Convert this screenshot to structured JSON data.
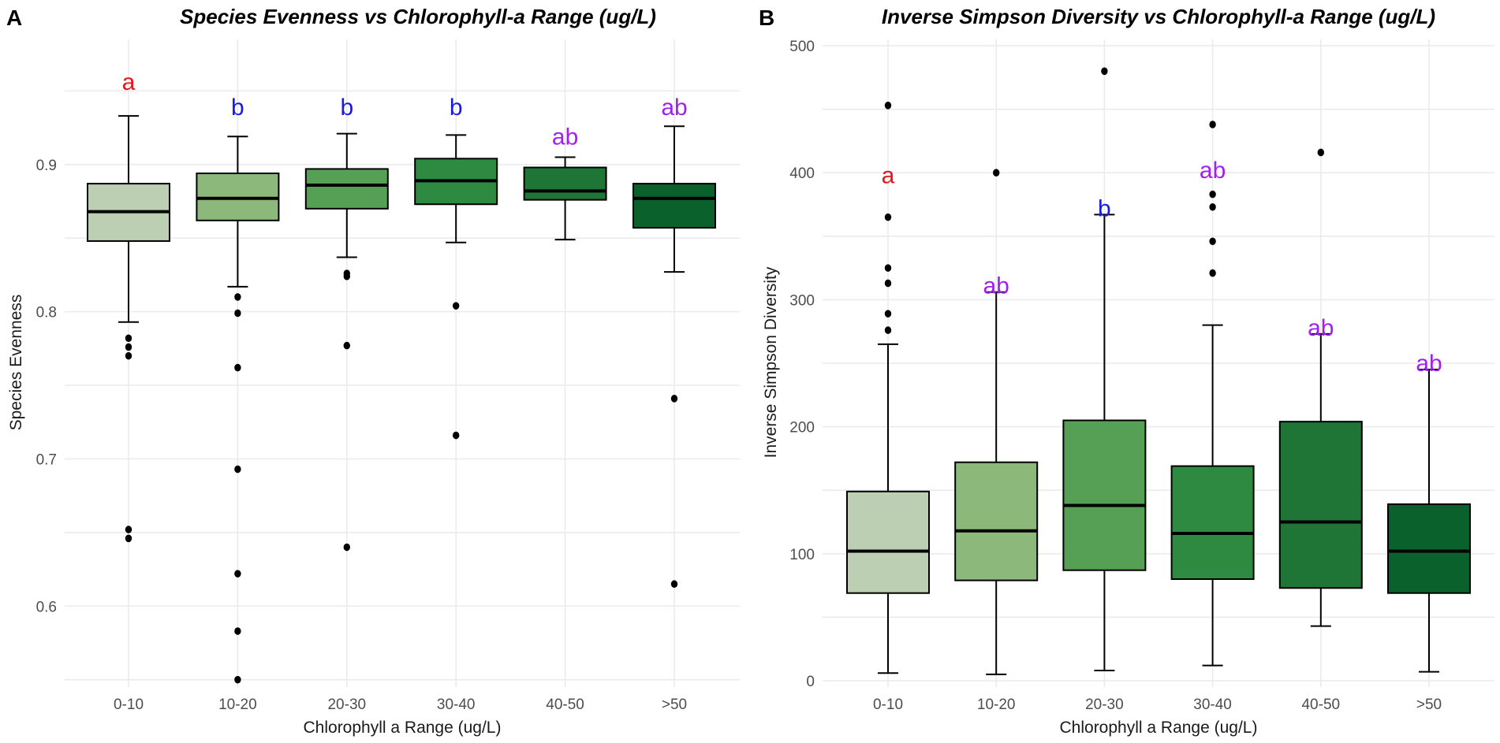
{
  "chart_data": [
    {
      "type": "box",
      "panel": "A",
      "title": "Species Evenness vs Chlorophyll-a Range (ug/L)",
      "xlabel": "Chlorophyll a Range (ug/L)",
      "ylabel": "Species Evenness",
      "ylim": [
        0.545,
        0.985
      ],
      "yticks": [
        0.6,
        0.7,
        0.8,
        0.9
      ],
      "ytick_labels": [
        "0.6",
        "0.7",
        "0.8",
        "0.9"
      ],
      "grid": true,
      "categories": [
        "0-10",
        "10-20",
        "20-30",
        "30-40",
        "40-50",
        ">50"
      ],
      "fill_colors": [
        "#bccfb3",
        "#8db87b",
        "#56a055",
        "#2e8a40",
        "#1f7535",
        "#0b612b"
      ],
      "boxes": [
        {
          "lower_whisker": 0.793,
          "q1": 0.848,
          "median": 0.868,
          "q3": 0.887,
          "upper_whisker": 0.933,
          "outliers": [
            0.782,
            0.776,
            0.77,
            0.652,
            0.646
          ]
        },
        {
          "lower_whisker": 0.817,
          "q1": 0.862,
          "median": 0.877,
          "q3": 0.894,
          "upper_whisker": 0.919,
          "outliers": [
            0.81,
            0.799,
            0.762,
            0.693,
            0.622,
            0.583,
            0.55
          ]
        },
        {
          "lower_whisker": 0.837,
          "q1": 0.87,
          "median": 0.886,
          "q3": 0.897,
          "upper_whisker": 0.921,
          "outliers": [
            0.826,
            0.824,
            0.777,
            0.64
          ]
        },
        {
          "lower_whisker": 0.847,
          "q1": 0.873,
          "median": 0.889,
          "q3": 0.904,
          "upper_whisker": 0.92,
          "outliers": [
            0.804,
            0.716
          ]
        },
        {
          "lower_whisker": 0.849,
          "q1": 0.876,
          "median": 0.882,
          "q3": 0.898,
          "upper_whisker": 0.905,
          "outliers": []
        },
        {
          "lower_whisker": 0.827,
          "q1": 0.857,
          "median": 0.877,
          "q3": 0.887,
          "upper_whisker": 0.926,
          "outliers": [
            0.741,
            0.615
          ]
        }
      ],
      "annotations": [
        {
          "text": "a",
          "value": 0.956,
          "color": "#e8141c"
        },
        {
          "text": "b",
          "value": 0.939,
          "color": "#1a1ae0"
        },
        {
          "text": "b",
          "value": 0.939,
          "color": "#1a1ae0"
        },
        {
          "text": "b",
          "value": 0.939,
          "color": "#1a1ae0"
        },
        {
          "text": "ab",
          "value": 0.919,
          "color": "#a020f0"
        },
        {
          "text": "ab",
          "value": 0.939,
          "color": "#a020f0"
        }
      ]
    },
    {
      "type": "box",
      "panel": "B",
      "title": "Inverse Simpson Diversity vs Chlorophyll-a Range (ug/L)",
      "xlabel": "Chlorophyll a Range (ug/L)",
      "ylabel": "Inverse Simpson Diversity",
      "ylim": [
        -5,
        505
      ],
      "yticks": [
        0,
        100,
        200,
        300,
        400,
        500
      ],
      "ytick_labels": [
        "0",
        "100",
        "200",
        "300",
        "400",
        "500"
      ],
      "grid": true,
      "categories": [
        "0-10",
        "10-20",
        "20-30",
        "30-40",
        "40-50",
        ">50"
      ],
      "fill_colors": [
        "#bccfb3",
        "#8db87b",
        "#56a055",
        "#2e8a40",
        "#1f7535",
        "#0b612b"
      ],
      "boxes": [
        {
          "lower_whisker": 6,
          "q1": 69,
          "median": 102,
          "q3": 149,
          "upper_whisker": 265,
          "outliers": [
            453,
            365,
            325,
            313,
            289,
            276
          ]
        },
        {
          "lower_whisker": 5,
          "q1": 79,
          "median": 118,
          "q3": 172,
          "upper_whisker": 306,
          "outliers": [
            400
          ]
        },
        {
          "lower_whisker": 8,
          "q1": 87,
          "median": 138,
          "q3": 205,
          "upper_whisker": 367,
          "outliers": [
            480
          ]
        },
        {
          "lower_whisker": 12,
          "q1": 80,
          "median": 116,
          "q3": 169,
          "upper_whisker": 280,
          "outliers": [
            438,
            383,
            373,
            346,
            321
          ]
        },
        {
          "lower_whisker": 43,
          "q1": 73,
          "median": 125,
          "q3": 204,
          "upper_whisker": 273,
          "outliers": [
            416
          ]
        },
        {
          "lower_whisker": 7,
          "q1": 69,
          "median": 102,
          "q3": 139,
          "upper_whisker": 245,
          "outliers": []
        }
      ],
      "annotations": [
        {
          "text": "a",
          "value": 398,
          "color": "#e8141c"
        },
        {
          "text": "ab",
          "value": 311,
          "color": "#a020f0"
        },
        {
          "text": "b",
          "value": 372,
          "color": "#1a1ae0"
        },
        {
          "text": "ab",
          "value": 402,
          "color": "#a020f0"
        },
        {
          "text": "ab",
          "value": 278,
          "color": "#a020f0"
        },
        {
          "text": "ab",
          "value": 250,
          "color": "#a020f0"
        }
      ]
    }
  ],
  "panels": [
    {
      "tag": "A"
    },
    {
      "tag": "B"
    }
  ]
}
